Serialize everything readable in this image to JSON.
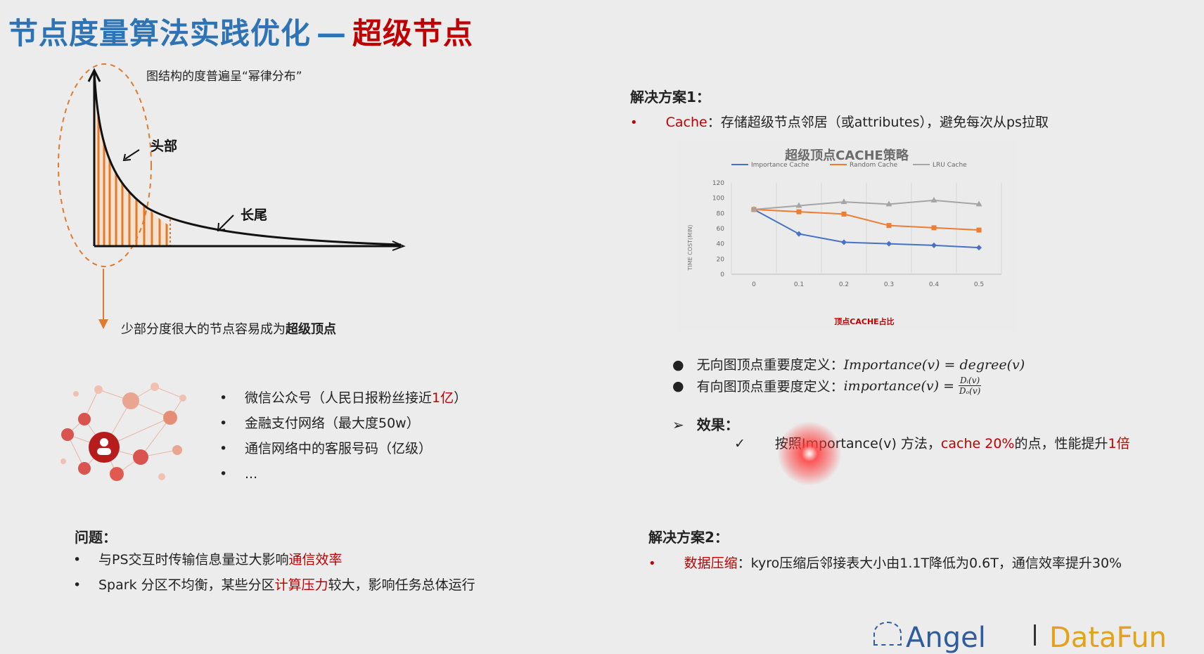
{
  "title": {
    "main": "节点度量算法实践优化",
    "dash": "—",
    "accent": "超级节点"
  },
  "left": {
    "powerlaw_caption": "图结构的度普遍呈“幂律分布”",
    "head_label": "头部",
    "tail_label": "长尾",
    "super_caption_prefix": "少部分度很大的节点容易成为",
    "super_caption_bold": "超级顶点",
    "examples": [
      {
        "prefix": "微信公众号（人民日报粉丝接近",
        "highlight": "1亿",
        "suffix": "）"
      },
      {
        "prefix": "金融支付网络（最大度50w）",
        "highlight": "",
        "suffix": ""
      },
      {
        "prefix": "通信网络中的客服号码（亿级）",
        "highlight": "",
        "suffix": ""
      },
      {
        "prefix": "...",
        "highlight": "",
        "suffix": ""
      }
    ],
    "problem_title": "问题：",
    "problems": [
      {
        "prefix": "与PS交互时传输信息量过大影响",
        "highlight": "通信效率",
        "suffix": ""
      },
      {
        "prefix": "Spark 分区不均衡，某些分区",
        "highlight": "计算压力",
        "suffix": "较大，影响任务总体运行"
      }
    ]
  },
  "right": {
    "solution1_title": "解决方案1：",
    "solution1_key": "Cache",
    "solution1_text": "：存储超级节点邻居（或attributes），避免每次从ps拉取",
    "def1_label": "无向图顶点重要度定义：",
    "def1_formula": "Importance(v) = degree(v)",
    "def2_label": "有向图顶点重要度定义：",
    "def2_lhs": "importance(v) =",
    "def2_num": "Dᵢ(v)",
    "def2_den": "Dₒ(v)",
    "effect_title": "效果：",
    "effect_prefix": "按照Importance(v) 方法，",
    "effect_hl1": "cache 20%",
    "effect_mid": "的点，性能提升",
    "effect_hl2": "1倍",
    "solution2_title": "解决方案2：",
    "solution2_key": "数据压缩",
    "solution2_text": "：kyro压缩后邻接表大小由1.1T降低为0.6T，通信效率提升30%"
  },
  "logo": {
    "left": "Angel",
    "right": "DataFun"
  },
  "chart_data": {
    "type": "line",
    "title": "超级顶点CACHE策略",
    "xlabel": "顶点CACHE占比",
    "ylabel": "TIME COST(MIN)",
    "x": [
      0,
      0.1,
      0.2,
      0.3,
      0.4,
      0.5
    ],
    "x_ticks": [
      "0",
      "0.1",
      "0.2",
      "0.3",
      "0.4",
      "0.5"
    ],
    "ylim": [
      0,
      120
    ],
    "y_ticks": [
      "0",
      "20",
      "40",
      "60",
      "80",
      "100",
      "120"
    ],
    "legend_position": "top",
    "series": [
      {
        "name": "Importance Cache",
        "color": "#4472c4",
        "marker": "diamond",
        "values": [
          85,
          53,
          42,
          40,
          38,
          35
        ]
      },
      {
        "name": "Random Cache",
        "color": "#ed7d31",
        "marker": "square",
        "values": [
          85,
          82,
          79,
          64,
          61,
          58
        ]
      },
      {
        "name": "LRU Cache",
        "color": "#a5a5a5",
        "marker": "triangle",
        "values": [
          85,
          90,
          95,
          92,
          97,
          92
        ]
      }
    ]
  }
}
